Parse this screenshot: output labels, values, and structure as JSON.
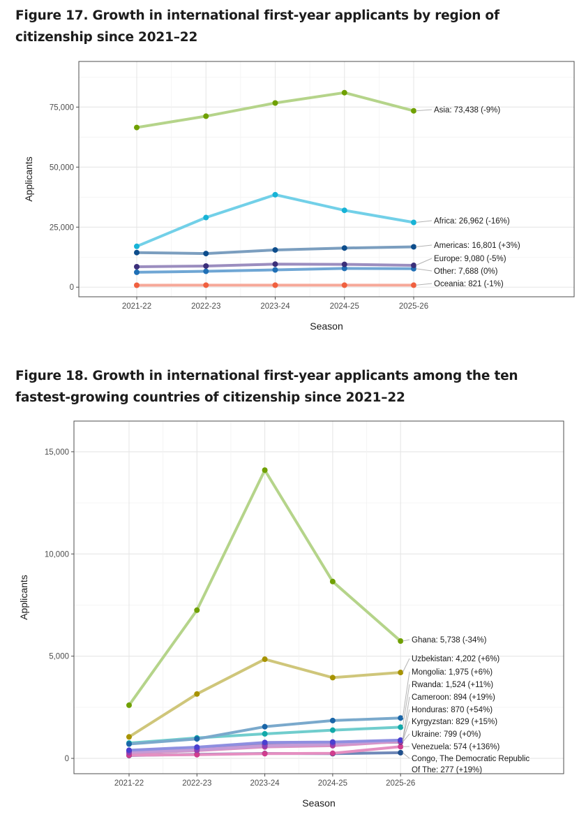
{
  "figures": [
    {
      "title": "Figure 17. Growth in international first-year applicants by region of citizenship since 2021–22"
    },
    {
      "title": "Figure 18. Growth in international first-year applicants among the ten fastest-growing countries of citizenship since 2021–22"
    }
  ],
  "chart_data": [
    {
      "type": "line",
      "title": "Figure 17. Growth in international first-year applicants by region of citizenship since 2021–22",
      "xlabel": "Season",
      "ylabel": "Applicants",
      "ylim": [
        -4000,
        94000
      ],
      "yticks": [
        0,
        25000,
        50000,
        75000
      ],
      "ytick_labels": [
        "0",
        "25,000",
        "50,000",
        "75,000"
      ],
      "categories": [
        "2021-22",
        "2022-23",
        "2023-24",
        "2024-25",
        "2025-26"
      ],
      "grid": true,
      "series": [
        {
          "name": "Asia",
          "values": [
            66500,
            71200,
            76700,
            81000,
            73438
          ],
          "color": "#b5d48a",
          "marker": "#6fa000",
          "label": "Asia: 73,438 (-9%)"
        },
        {
          "name": "Africa",
          "values": [
            17000,
            29000,
            38500,
            32000,
            26962
          ],
          "color": "#72d0e8",
          "marker": "#17b3d6",
          "label": "Africa: 26,962 (-16%)"
        },
        {
          "name": "Americas",
          "values": [
            14400,
            14000,
            15500,
            16300,
            16801
          ],
          "color": "#7b9ebf",
          "marker": "#0d4d8c",
          "label": "Americas: 16,801 (+3%)"
        },
        {
          "name": "Europe",
          "values": [
            8500,
            8800,
            9600,
            9500,
            9080
          ],
          "color": "#9b8dbf",
          "marker": "#3b2f7a",
          "label": "Europe: 9,080 (-5%)"
        },
        {
          "name": "Other",
          "values": [
            6200,
            6600,
            7200,
            7800,
            7688
          ],
          "color": "#6fa6d4",
          "marker": "#1f6fb5",
          "label": "Other: 7,688 (0%)"
        },
        {
          "name": "Oceania",
          "values": [
            800,
            850,
            830,
            830,
            821
          ],
          "color": "#f6a899",
          "marker": "#f0603f",
          "label": "Oceania: 821 (-1%)"
        }
      ]
    },
    {
      "type": "line",
      "title": "Figure 18. Growth in international first-year applicants among the ten fastest-growing countries of citizenship since 2021–22",
      "xlabel": "Season",
      "ylabel": "Applicants",
      "ylim": [
        -750,
        16500
      ],
      "yticks": [
        0,
        5000,
        10000,
        15000
      ],
      "ytick_labels": [
        "0",
        "5,000",
        "10,000",
        "15,000"
      ],
      "categories": [
        "2021-22",
        "2022-23",
        "2023-24",
        "2024-25",
        "2025-26"
      ],
      "grid": true,
      "series": [
        {
          "name": "Ghana",
          "values": [
            2600,
            7250,
            14100,
            8650,
            5738
          ],
          "color": "#b5d48a",
          "marker": "#6fa000",
          "label": "Ghana: 5,738 (-34%)"
        },
        {
          "name": "Uzbekistan",
          "values": [
            1050,
            3150,
            4850,
            3950,
            4202
          ],
          "color": "#cfc67a",
          "marker": "#a79300",
          "label": "Uzbekistan: 4,202 (+6%)"
        },
        {
          "name": "Mongolia",
          "values": [
            700,
            950,
            1550,
            1850,
            1975
          ],
          "color": "#7aa9cc",
          "marker": "#1a66a8",
          "label": "Mongolia: 1,975 (+6%)"
        },
        {
          "name": "Rwanda",
          "values": [
            750,
            1000,
            1200,
            1380,
            1524
          ],
          "color": "#70cdcd",
          "marker": "#12a9a9",
          "label": "Rwanda: 1,524 (+11%)"
        },
        {
          "name": "Cameroon",
          "values": [
            400,
            550,
            780,
            800,
            894
          ],
          "color": "#8e8fe0",
          "marker": "#4a3fd0",
          "label": "Cameroon: 894 (+19%)"
        },
        {
          "name": "Honduras",
          "values": [
            300,
            420,
            620,
            700,
            870
          ],
          "color": "#c59bd6",
          "marker": "#8e3fb5",
          "label": "Honduras: 870 (+54%)"
        },
        {
          "name": "Kyrgyzstan",
          "values": [
            250,
            380,
            560,
            620,
            829
          ],
          "color": "#d992c4",
          "marker": "#b53f99",
          "label": "Kyrgyzstan: 829 (+15%)"
        },
        {
          "name": "Ukraine",
          "values": [
            350,
            480,
            680,
            720,
            799
          ],
          "color": "#8c7fb8",
          "marker": "#3d2f85",
          "label": "Ukraine: 799 (+0%)"
        },
        {
          "name": "Venezuela",
          "values": [
            150,
            180,
            230,
            250,
            574
          ],
          "color": "#e58fc1",
          "marker": "#d13d8e",
          "label": "Venezuela: 574 (+136%)"
        },
        {
          "name": "Congo, The Democratic Republic Of The",
          "values": [
            140,
            200,
            240,
            230,
            277
          ],
          "color": "#6f88b8",
          "marker": "#1f4f8c",
          "label": "Congo, The Democratic Republic",
          "label2": "Of The: 277 (+19%)"
        }
      ]
    }
  ]
}
